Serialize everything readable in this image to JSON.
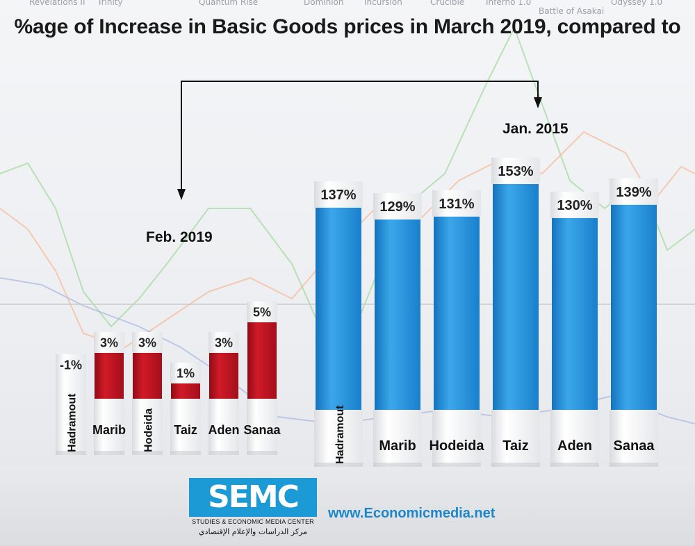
{
  "title": "%age of Increase in Basic Goods prices in March 2019, compared to",
  "background_words": [
    "Revelations II",
    "Trinity",
    "Quantum Rise",
    "Dominion",
    "Incursion",
    "Crucible",
    "Inferno 1.0",
    "Battle of Asakai",
    "Odyssey 1.0"
  ],
  "logo": {
    "name": "SEMC",
    "subtitle": "STUDIES & ECONOMIC MEDIA CENTER",
    "arabic": "مركز الدراسات والإعلام الإقتصادي"
  },
  "website": "www.Economicmedia.net",
  "colors": {
    "red_bar": "#c1121f",
    "blue_bar": "#1f8ed8",
    "website": "#1c86c8"
  },
  "chart_data": [
    {
      "type": "bar",
      "title": "Feb. 2019",
      "categories": [
        "Hadramout",
        "Marib",
        "Hodeida",
        "Taiz",
        "Aden",
        "Sanaa"
      ],
      "values": [
        -1,
        3,
        3,
        1,
        3,
        5
      ],
      "value_labels": [
        "-1%",
        "3%",
        "3%",
        "1%",
        "3%",
        "5%"
      ],
      "unit": "%",
      "ylim": [
        0,
        5
      ]
    },
    {
      "type": "bar",
      "title": "Jan. 2015",
      "categories": [
        "Hadramout",
        "Marib",
        "Hodeida",
        "Taiz",
        "Aden",
        "Sanaa"
      ],
      "values": [
        137,
        129,
        131,
        153,
        130,
        139
      ],
      "value_labels": [
        "137%",
        "129%",
        "131%",
        "153%",
        "130%",
        "139%"
      ],
      "unit": "%",
      "ylim": [
        0,
        153
      ]
    }
  ]
}
